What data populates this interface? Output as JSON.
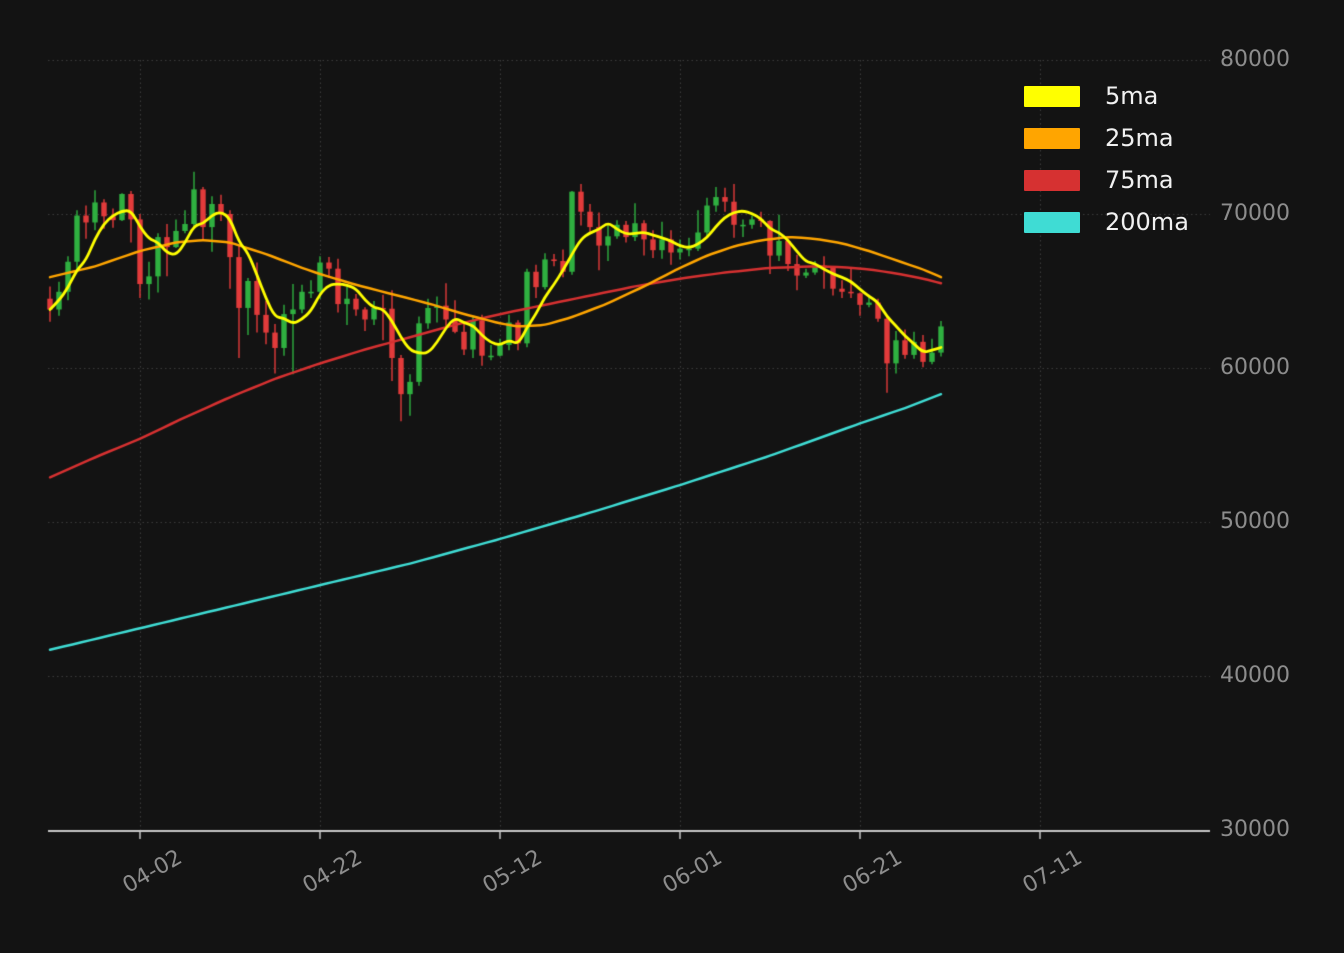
{
  "colors": {
    "background": "#131313",
    "grid": "#3c3c3c",
    "axis": "#c6c6c6",
    "tick_text": "#8d8d8d",
    "legend_text": "#f1f1f1",
    "up": "#2fb040",
    "down": "#e23b3b",
    "ma5": "#ffff00",
    "ma25": "#ffa500",
    "ma75": "#d63131",
    "ma200": "#3fdcd4"
  },
  "legend": {
    "position": "top-right",
    "items": [
      {
        "label": "5ma",
        "color": "#ffff00"
      },
      {
        "label": "25ma",
        "color": "#ffa500"
      },
      {
        "label": "75ma",
        "color": "#d63131"
      },
      {
        "label": "200ma",
        "color": "#3fdcd4"
      }
    ]
  },
  "axes": {
    "y": {
      "min": 30000,
      "max": 80000,
      "ticks": [
        30000,
        40000,
        50000,
        60000,
        70000,
        80000
      ],
      "side": "right"
    },
    "x": {
      "ticks": [
        {
          "label": "04-02",
          "index": 10
        },
        {
          "label": "04-22",
          "index": 30
        },
        {
          "label": "05-12",
          "index": 50
        },
        {
          "label": "06-01",
          "index": 70
        },
        {
          "label": "06-21",
          "index": 90
        },
        {
          "label": "07-11",
          "index": 110
        }
      ]
    }
  },
  "chart_data": {
    "type": "candlestick",
    "title": "",
    "ylim": [
      30000,
      80000
    ],
    "grid": true,
    "legend_position": "top-right",
    "dates": [
      "03-23",
      "03-24",
      "03-25",
      "03-26",
      "03-27",
      "03-28",
      "03-29",
      "03-30",
      "03-31",
      "04-01",
      "04-02",
      "04-03",
      "04-04",
      "04-05",
      "04-06",
      "04-07",
      "04-08",
      "04-09",
      "04-10",
      "04-11",
      "04-12",
      "04-13",
      "04-14",
      "04-15",
      "04-16",
      "04-17",
      "04-18",
      "04-19",
      "04-20",
      "04-21",
      "04-22",
      "04-23",
      "04-24",
      "04-25",
      "04-26",
      "04-27",
      "04-28",
      "04-29",
      "04-30",
      "05-01",
      "05-02",
      "05-03",
      "05-04",
      "05-05",
      "05-06",
      "05-07",
      "05-08",
      "05-09",
      "05-10",
      "05-11",
      "05-12",
      "05-13",
      "05-14",
      "05-15",
      "05-16",
      "05-17",
      "05-18",
      "05-19",
      "05-20",
      "05-21",
      "05-22",
      "05-23",
      "05-24",
      "05-25",
      "05-26",
      "05-27",
      "05-28",
      "05-29",
      "05-30",
      "05-31",
      "06-01",
      "06-02",
      "06-03",
      "06-04",
      "06-05",
      "06-06",
      "06-07",
      "06-08",
      "06-09",
      "06-10",
      "06-11",
      "06-12",
      "06-13",
      "06-14",
      "06-15",
      "06-16",
      "06-17",
      "06-18",
      "06-19",
      "06-20",
      "06-21",
      "06-22",
      "06-23",
      "06-24",
      "06-25",
      "06-26",
      "06-27",
      "06-28",
      "06-29",
      "06-30"
    ],
    "open": [
      64500,
      63800,
      64950,
      66900,
      69900,
      69450,
      70750,
      69850,
      69600,
      71300,
      69650,
      65450,
      65950,
      68500,
      67850,
      68900,
      69350,
      71600,
      69150,
      70650,
      70000,
      67200,
      63900,
      65650,
      63450,
      62300,
      61300,
      63500,
      63800,
      64950,
      64950,
      66850,
      66450,
      64150,
      64500,
      63800,
      63150,
      63900,
      63850,
      60650,
      58300,
      59100,
      62900,
      63900,
      64050,
      63150,
      62350,
      61200,
      63100,
      60800,
      60800,
      61500,
      62950,
      61600,
      66250,
      65250,
      67050,
      66950,
      66250,
      71450,
      70150,
      69150,
      67950,
      68550,
      69300,
      68500,
      69400,
      68350,
      67650,
      68350,
      67500,
      67750,
      67750,
      68800,
      70550,
      71100,
      70800,
      69300,
      69300,
      69650,
      69550,
      67300,
      68250,
      66750,
      66000,
      66200,
      66650,
      66500,
      65150,
      64950,
      64850,
      64100,
      64250,
      63200,
      60300,
      61800,
      60850,
      61700,
      60400,
      61000
    ],
    "high": [
      65300,
      65600,
      67250,
      70250,
      70550,
      71550,
      70950,
      70350,
      71350,
      71500,
      70000,
      66900,
      68750,
      69350,
      69650,
      70250,
      72750,
      71750,
      71150,
      71250,
      70250,
      67950,
      65850,
      66850,
      64350,
      62850,
      64100,
      65450,
      65400,
      65700,
      67250,
      67200,
      67100,
      65300,
      64800,
      63950,
      64350,
      64750,
      65050,
      60850,
      59600,
      63350,
      64500,
      64650,
      65500,
      64400,
      63050,
      63400,
      63450,
      61500,
      61900,
      63450,
      63100,
      66450,
      66700,
      67450,
      67400,
      67700,
      71500,
      71950,
      70650,
      70100,
      69250,
      69600,
      69550,
      70700,
      69600,
      68950,
      69500,
      68950,
      68350,
      68450,
      70250,
      71050,
      71750,
      71700,
      71950,
      69650,
      69900,
      70150,
      69600,
      69950,
      68400,
      67350,
      66450,
      66950,
      67250,
      66550,
      65700,
      66450,
      64900,
      64750,
      64500,
      63350,
      62400,
      62500,
      62350,
      62150,
      61900,
      63050
    ],
    "low": [
      63000,
      63400,
      64400,
      66350,
      68400,
      68950,
      69050,
      69100,
      69550,
      68150,
      64550,
      64450,
      64900,
      65950,
      67800,
      68750,
      69050,
      68250,
      67550,
      69550,
      65150,
      60650,
      62150,
      62300,
      61550,
      59650,
      60800,
      59600,
      63550,
      64550,
      64500,
      65850,
      63600,
      62800,
      63400,
      62400,
      62800,
      61800,
      59150,
      56550,
      56900,
      58850,
      62550,
      62950,
      62700,
      62250,
      60850,
      60650,
      60150,
      60500,
      60750,
      61150,
      61150,
      61350,
      64550,
      65100,
      66600,
      65900,
      66050,
      69250,
      68850,
      66350,
      66950,
      68400,
      68150,
      68250,
      67300,
      67150,
      67100,
      66700,
      67050,
      67250,
      67600,
      68550,
      70150,
      70150,
      68450,
      68500,
      69050,
      69150,
      66100,
      66950,
      66300,
      65050,
      65850,
      66050,
      65150,
      64700,
      64550,
      64550,
      63400,
      63950,
      63000,
      58400,
      59650,
      60600,
      60600,
      60050,
      60250,
      60750
    ],
    "close": [
      63800,
      64950,
      66900,
      69900,
      69450,
      70750,
      69850,
      69600,
      71300,
      69650,
      65450,
      65950,
      68500,
      67850,
      68900,
      69350,
      71600,
      69150,
      70650,
      70000,
      67200,
      63900,
      65650,
      63450,
      62300,
      61300,
      63500,
      63800,
      64950,
      64950,
      66850,
      66450,
      64150,
      64500,
      63800,
      63150,
      63900,
      63850,
      60650,
      58300,
      59100,
      62900,
      63900,
      64050,
      63150,
      62350,
      61200,
      63100,
      60800,
      60800,
      61500,
      62950,
      61600,
      66250,
      65250,
      67050,
      66950,
      66250,
      71450,
      70150,
      69150,
      67950,
      68550,
      69300,
      68500,
      69400,
      68350,
      67650,
      68350,
      67500,
      67750,
      67750,
      68800,
      70550,
      71100,
      70800,
      69300,
      69300,
      69650,
      69550,
      67300,
      68250,
      66750,
      66000,
      66200,
      66650,
      66500,
      65150,
      64950,
      64850,
      64100,
      64250,
      63200,
      60300,
      61800,
      60850,
      61700,
      60400,
      61000,
      62700
    ],
    "overlays": [
      {
        "name": "5ma",
        "color": "#ffff00",
        "window": 5,
        "source": "close"
      },
      {
        "name": "25ma",
        "color": "#ffa500",
        "anchors": [
          [
            "03-23",
            65900
          ],
          [
            "03-28",
            66600
          ],
          [
            "04-02",
            67600
          ],
          [
            "04-06",
            68150
          ],
          [
            "04-09",
            68300
          ],
          [
            "04-12",
            68150
          ],
          [
            "04-16",
            67400
          ],
          [
            "04-20",
            66500
          ],
          [
            "04-22",
            66100
          ],
          [
            "04-26",
            65400
          ],
          [
            "04-30",
            64800
          ],
          [
            "05-04",
            64200
          ],
          [
            "05-08",
            63500
          ],
          [
            "05-12",
            62900
          ],
          [
            "05-14",
            62700
          ],
          [
            "05-17",
            62800
          ],
          [
            "05-20",
            63300
          ],
          [
            "05-24",
            64200
          ],
          [
            "05-28",
            65300
          ],
          [
            "06-01",
            66500
          ],
          [
            "06-04",
            67300
          ],
          [
            "06-07",
            67900
          ],
          [
            "06-10",
            68300
          ],
          [
            "06-13",
            68500
          ],
          [
            "06-16",
            68400
          ],
          [
            "06-19",
            68100
          ],
          [
            "06-22",
            67600
          ],
          [
            "06-25",
            67000
          ],
          [
            "06-28",
            66400
          ],
          [
            "06-30",
            65900
          ]
        ]
      },
      {
        "name": "75ma",
        "color": "#d63131",
        "anchors": [
          [
            "03-23",
            52900
          ],
          [
            "03-28",
            54200
          ],
          [
            "04-02",
            55400
          ],
          [
            "04-07",
            56800
          ],
          [
            "04-12",
            58100
          ],
          [
            "04-17",
            59300
          ],
          [
            "04-22",
            60300
          ],
          [
            "04-27",
            61200
          ],
          [
            "05-02",
            62000
          ],
          [
            "05-07",
            62800
          ],
          [
            "05-12",
            63500
          ],
          [
            "05-17",
            64100
          ],
          [
            "05-22",
            64700
          ],
          [
            "05-27",
            65300
          ],
          [
            "06-01",
            65800
          ],
          [
            "06-06",
            66200
          ],
          [
            "06-11",
            66500
          ],
          [
            "06-16",
            66600
          ],
          [
            "06-19",
            66550
          ],
          [
            "06-22",
            66400
          ],
          [
            "06-25",
            66150
          ],
          [
            "06-28",
            65800
          ],
          [
            "06-30",
            65500
          ]
        ]
      },
      {
        "name": "200ma",
        "color": "#3fdcd4",
        "anchors": [
          [
            "03-23",
            41700
          ],
          [
            "04-02",
            43100
          ],
          [
            "04-12",
            44500
          ],
          [
            "04-22",
            45900
          ],
          [
            "05-02",
            47300
          ],
          [
            "05-12",
            48900
          ],
          [
            "05-22",
            50600
          ],
          [
            "06-01",
            52400
          ],
          [
            "06-11",
            54300
          ],
          [
            "06-21",
            56400
          ],
          [
            "06-26",
            57400
          ],
          [
            "06-30",
            58300
          ]
        ]
      }
    ]
  }
}
